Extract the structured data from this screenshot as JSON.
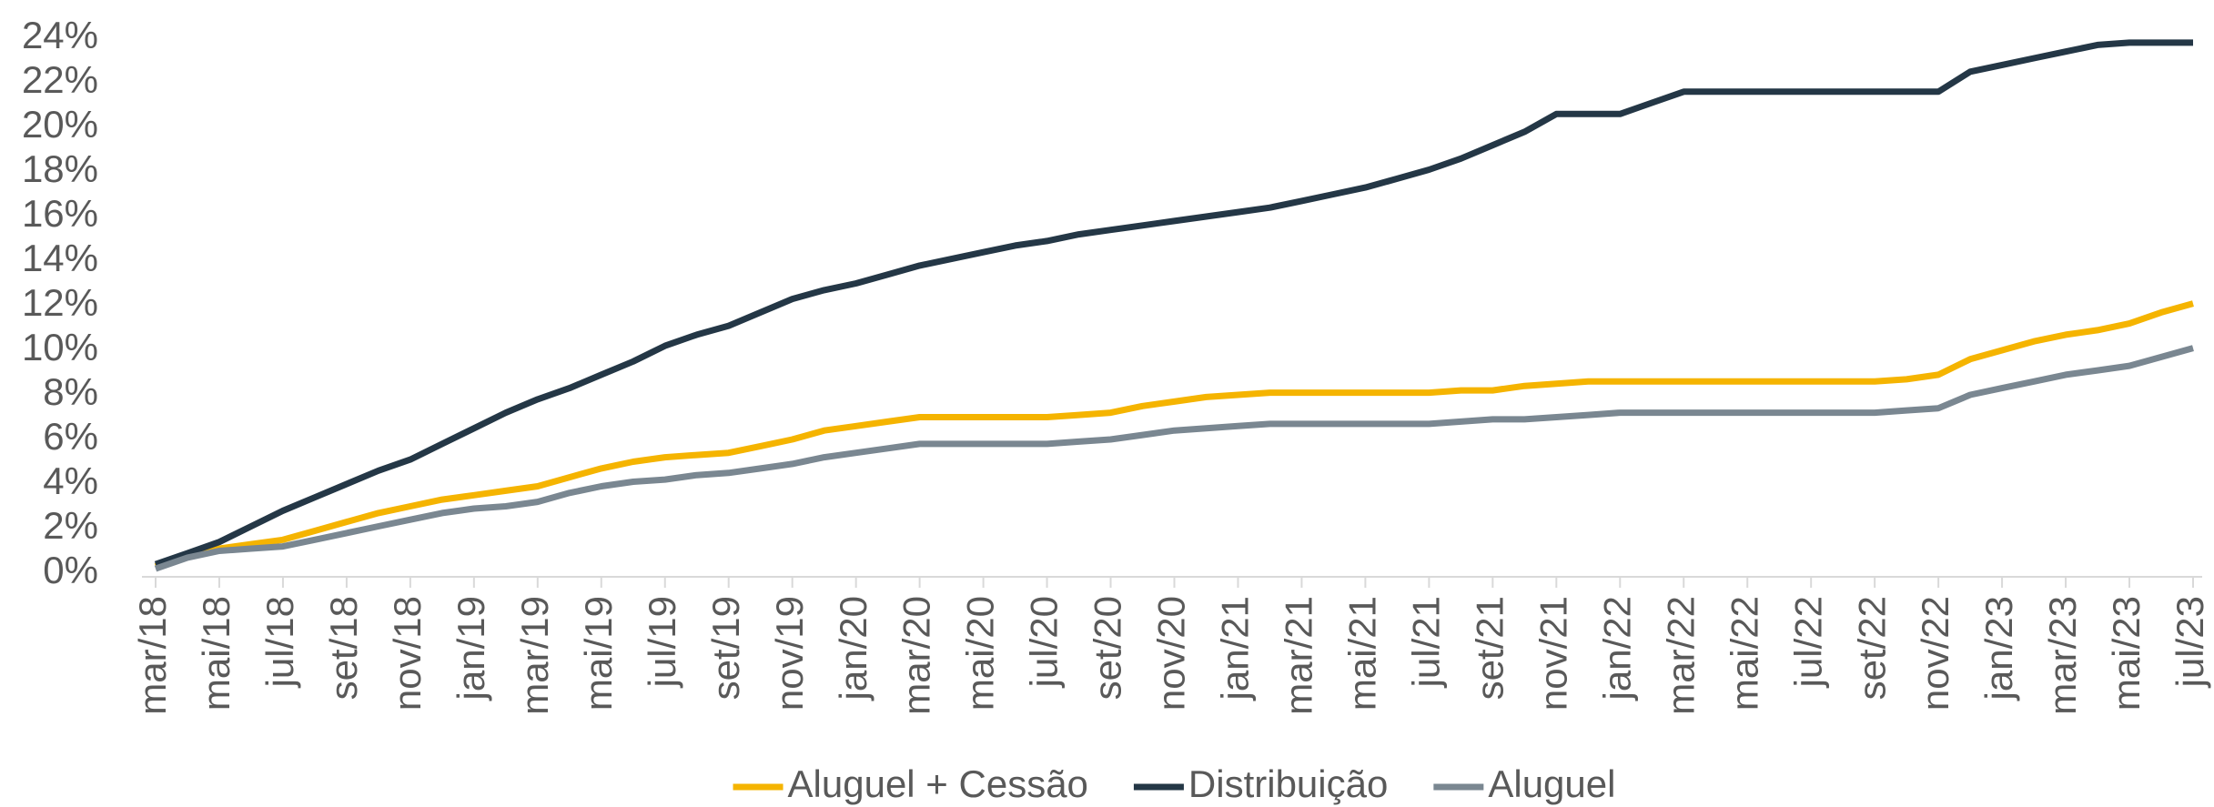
{
  "chart_data": {
    "type": "line",
    "categories": [
      "mar/18",
      null,
      "mai/18",
      null,
      "jul/18",
      null,
      "set/18",
      null,
      "nov/18",
      null,
      "jan/19",
      null,
      "mar/19",
      null,
      "mai/19",
      null,
      "jul/19",
      null,
      "set/19",
      null,
      "nov/19",
      null,
      "jan/20",
      null,
      "mar/20",
      null,
      "mai/20",
      null,
      "jul/20",
      null,
      "set/20",
      null,
      "nov/20",
      null,
      "jan/21",
      null,
      "mar/21",
      null,
      "mai/21",
      null,
      "jul/21",
      null,
      "set/21",
      null,
      "nov/21",
      null,
      "jan/22",
      null,
      "mar/22",
      null,
      "mai/22",
      null,
      "jul/22",
      null,
      "set/22",
      null,
      "nov/22",
      null,
      "jan/23",
      null,
      "mar/23",
      null,
      "mai/23",
      null,
      "jul/23"
    ],
    "series": [
      {
        "name": "Aluguel + Cessão",
        "color": "#f5b400",
        "values": [
          0.3,
          0.8,
          1.1,
          1.3,
          1.5,
          1.9,
          2.3,
          2.7,
          3.0,
          3.3,
          3.5,
          3.7,
          3.9,
          4.3,
          4.7,
          5.0,
          5.2,
          5.3,
          5.4,
          5.7,
          6.0,
          6.4,
          6.6,
          6.8,
          7.0,
          7.0,
          7.0,
          7.0,
          7.0,
          7.1,
          7.2,
          7.5,
          7.7,
          7.9,
          8.0,
          8.1,
          8.1,
          8.1,
          8.1,
          8.1,
          8.1,
          8.2,
          8.2,
          8.4,
          8.5,
          8.6,
          8.6,
          8.6,
          8.6,
          8.6,
          8.6,
          8.6,
          8.6,
          8.6,
          8.6,
          8.7,
          8.9,
          9.6,
          10.0,
          10.4,
          10.7,
          10.9,
          11.2,
          11.7,
          12.1
        ]
      },
      {
        "name": "Distribuição",
        "color": "#243746",
        "values": [
          0.4,
          0.9,
          1.4,
          2.1,
          2.8,
          3.4,
          4.0,
          4.6,
          5.1,
          5.8,
          6.5,
          7.2,
          7.8,
          8.3,
          8.9,
          9.5,
          10.2,
          10.7,
          11.1,
          11.7,
          12.3,
          12.7,
          13.0,
          13.4,
          13.8,
          14.1,
          14.4,
          14.7,
          14.9,
          15.2,
          15.4,
          15.6,
          15.8,
          16.0,
          16.2,
          16.4,
          16.7,
          17.0,
          17.3,
          17.7,
          18.1,
          18.6,
          19.2,
          19.8,
          20.6,
          20.6,
          20.6,
          21.1,
          21.6,
          21.6,
          21.6,
          21.6,
          21.6,
          21.6,
          21.6,
          21.6,
          21.6,
          22.5,
          22.8,
          23.1,
          23.4,
          23.7,
          23.8,
          23.8,
          23.8
        ]
      },
      {
        "name": "Aluguel",
        "color": "#7a8791",
        "values": [
          0.2,
          0.7,
          1.0,
          1.1,
          1.2,
          1.5,
          1.8,
          2.1,
          2.4,
          2.7,
          2.9,
          3.0,
          3.2,
          3.6,
          3.9,
          4.1,
          4.2,
          4.4,
          4.5,
          4.7,
          4.9,
          5.2,
          5.4,
          5.6,
          5.8,
          5.8,
          5.8,
          5.8,
          5.8,
          5.9,
          6.0,
          6.2,
          6.4,
          6.5,
          6.6,
          6.7,
          6.7,
          6.7,
          6.7,
          6.7,
          6.7,
          6.8,
          6.9,
          6.9,
          7.0,
          7.1,
          7.2,
          7.2,
          7.2,
          7.2,
          7.2,
          7.2,
          7.2,
          7.2,
          7.2,
          7.3,
          7.4,
          8.0,
          8.3,
          8.6,
          8.9,
          9.1,
          9.3,
          9.7,
          10.1
        ]
      }
    ],
    "ylim": [
      0,
      24
    ],
    "yticks": [
      {
        "value": 0,
        "label": "0%"
      },
      {
        "value": 2,
        "label": "2%"
      },
      {
        "value": 4,
        "label": "4%"
      },
      {
        "value": 6,
        "label": "6%"
      },
      {
        "value": 8,
        "label": "8%"
      },
      {
        "value": 10,
        "label": "10%"
      },
      {
        "value": 12,
        "label": "12%"
      },
      {
        "value": 14,
        "label": "14%"
      },
      {
        "value": 16,
        "label": "16%"
      },
      {
        "value": 18,
        "label": "18%"
      },
      {
        "value": 20,
        "label": "20%"
      },
      {
        "value": 22,
        "label": "22%"
      },
      {
        "value": 24,
        "label": "24%"
      }
    ],
    "grid": false,
    "legend": "bottom"
  }
}
